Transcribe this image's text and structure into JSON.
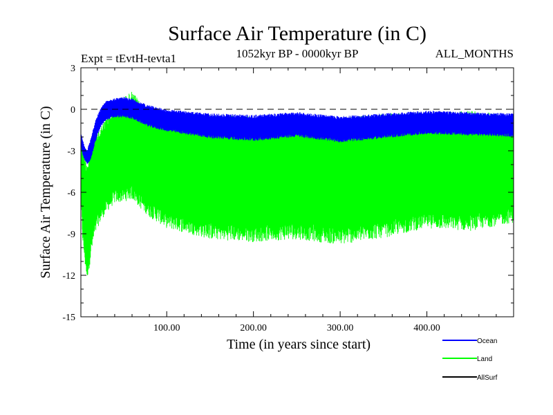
{
  "chart_data": {
    "type": "line",
    "title": "Surface Air Temperature (in C)",
    "experiment": "Expt = tEvtH-tevta1",
    "period": "1052kyr BP - 0000kyr BP",
    "months": "ALL_MONTHS",
    "xlabel": "Time (in years since start)",
    "ylabel": "Surface Air Temperature (in C)",
    "xlim": [
      1,
      500
    ],
    "ylim": [
      -15,
      3
    ],
    "y_ticks": [
      3,
      0,
      -3,
      -6,
      -9,
      -12,
      -15
    ],
    "y_tick_labels": [
      "3",
      "0",
      "-3",
      "-6",
      "-9",
      "-12",
      "-15"
    ],
    "x_ticks": [
      100,
      200,
      300,
      400
    ],
    "x_tick_labels": [
      "100.00",
      "200.00",
      "300.00",
      "400.00"
    ],
    "reference_line": 0,
    "series": [
      {
        "name": "Land",
        "color": "#00ff00",
        "x": [
          1,
          3,
          6,
          8,
          10,
          13,
          16,
          20,
          25,
          30,
          40,
          50,
          60,
          70,
          80,
          100,
          150,
          200,
          250,
          300,
          350,
          400,
          450,
          500
        ],
        "upper": [
          -1.8,
          -2.6,
          -3.4,
          -3.6,
          -3.3,
          -2.6,
          -1.8,
          -1.5,
          -1.1,
          -0.6,
          0.4,
          0.9,
          1.3,
          0.5,
          0.0,
          -0.2,
          -0.4,
          -0.5,
          -0.4,
          -0.6,
          -0.3,
          -0.2,
          -0.1,
          -0.4
        ],
        "lower": [
          -6.5,
          -9.5,
          -11.4,
          -12.3,
          -11.8,
          -10.5,
          -9.5,
          -8.6,
          -8.0,
          -7.5,
          -6.8,
          -6.7,
          -6.5,
          -7.2,
          -7.8,
          -8.6,
          -9.4,
          -9.6,
          -9.4,
          -9.8,
          -9.3,
          -8.6,
          -8.8,
          -8.2
        ]
      },
      {
        "name": "Ocean",
        "color": "#0000ff",
        "x": [
          1,
          3,
          6,
          8,
          10,
          13,
          16,
          20,
          25,
          30,
          40,
          50,
          60,
          70,
          80,
          100,
          150,
          200,
          250,
          300,
          350,
          400,
          450,
          500
        ],
        "upper": [
          -1.6,
          -2.2,
          -2.8,
          -3.0,
          -2.6,
          -2.0,
          -1.2,
          -0.4,
          0.2,
          0.6,
          0.8,
          0.9,
          0.8,
          0.5,
          0.3,
          0.0,
          -0.3,
          -0.4,
          -0.2,
          -0.5,
          -0.3,
          -0.1,
          -0.2,
          -0.3
        ],
        "lower": [
          -2.6,
          -3.3,
          -3.8,
          -4.0,
          -3.9,
          -3.5,
          -2.8,
          -1.9,
          -1.2,
          -0.8,
          -0.6,
          -0.6,
          -0.7,
          -1.0,
          -1.3,
          -1.6,
          -2.1,
          -2.3,
          -2.0,
          -2.4,
          -2.1,
          -1.8,
          -1.9,
          -2.0
        ]
      },
      {
        "name": "AllSurf",
        "color": "#000000",
        "x": [],
        "upper": [],
        "lower": []
      }
    ],
    "legend": [
      "Ocean",
      "Land",
      "AllSurf"
    ],
    "legend_colors": [
      "#0000ff",
      "#00ff00",
      "#000000"
    ]
  }
}
